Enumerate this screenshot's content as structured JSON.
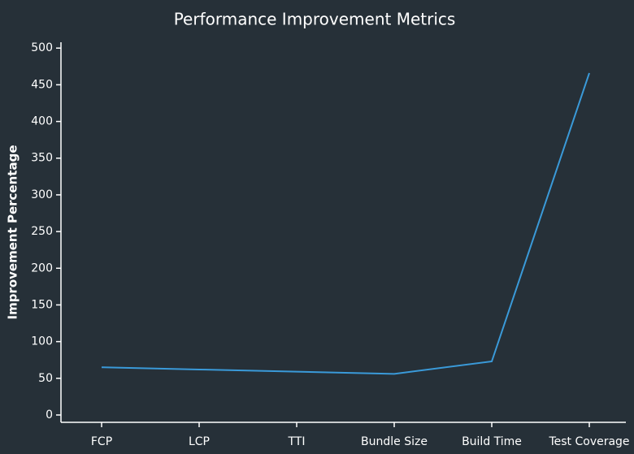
{
  "chart_data": {
    "type": "line",
    "title": "Performance Improvement Metrics",
    "y_label": "Improvement Percentage",
    "categories": [
      "FCP",
      "LCP",
      "TTI",
      "Bundle Size",
      "Build Time",
      "Test Coverage"
    ],
    "values": [
      65,
      62,
      59,
      56,
      73,
      466
    ],
    "color": "#3a9ad9",
    "ylim": [
      -10,
      508
    ],
    "yticks": [
      0,
      50,
      100,
      150,
      200,
      250,
      300,
      350,
      400,
      450,
      500
    ],
    "grid": false
  }
}
